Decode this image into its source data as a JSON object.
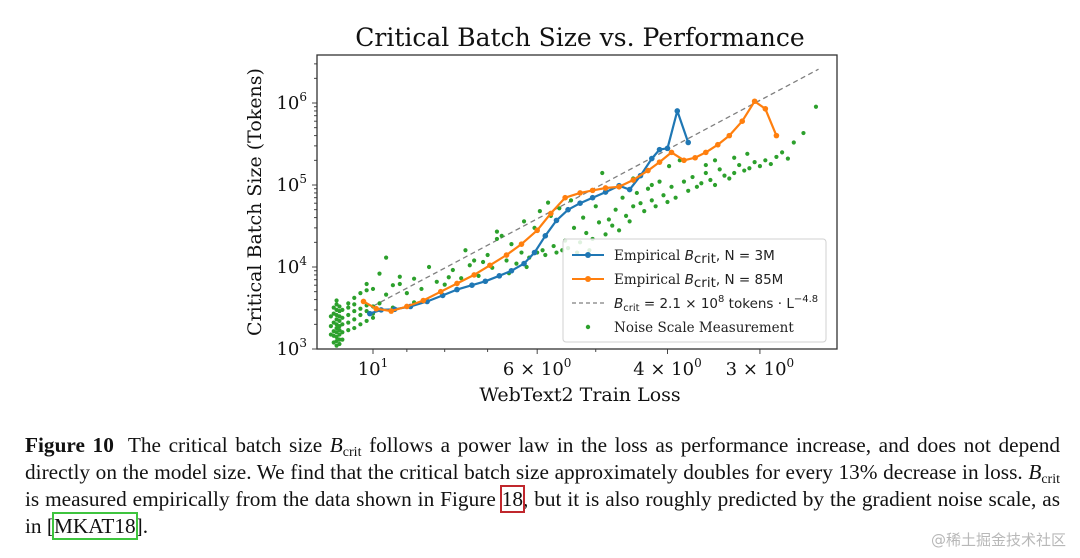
{
  "chart_data": {
    "type": "scatter",
    "title": "Critical Batch Size vs. Performance",
    "xlabel": "WebText2 Train Loss",
    "ylabel": "Critical Batch Size (Tokens)",
    "xscale": "log",
    "x_inverted": true,
    "yscale": "log",
    "ylim": [
      1000,
      3500000
    ],
    "xlim": [
      11.8,
      2.45
    ],
    "x_ticks": [
      {
        "value": 10,
        "base": "10",
        "exp": "1",
        "prefix": ""
      },
      {
        "value": 6,
        "base": "10",
        "exp": "0",
        "prefix": "6 × "
      },
      {
        "value": 4,
        "base": "10",
        "exp": "0",
        "prefix": "4 × "
      },
      {
        "value": 3,
        "base": "10",
        "exp": "0",
        "prefix": "3 × "
      }
    ],
    "y_ticks": [
      {
        "value": 1000,
        "base": "10",
        "exp": "3"
      },
      {
        "value": 10000,
        "base": "10",
        "exp": "4"
      },
      {
        "value": 100000,
        "base": "10",
        "exp": "5"
      },
      {
        "value": 1000000,
        "base": "10",
        "exp": "6"
      }
    ],
    "grid": false,
    "legend_position": "lower-right",
    "series": [
      {
        "name": "Empirical B_crit, N = 3M",
        "legend_label": {
          "pre": "Empirical ",
          "sym": "B",
          "sub": "crit",
          "post": ", N = 3M"
        },
        "kind": "line-marker",
        "color": "#1f77b4",
        "points": [
          [
            10.1,
            2700
          ],
          [
            9.75,
            3000
          ],
          [
            9.35,
            3050
          ],
          [
            8.9,
            3300
          ],
          [
            8.45,
            3800
          ],
          [
            8.05,
            4500
          ],
          [
            7.7,
            5300
          ],
          [
            7.35,
            6000
          ],
          [
            7.05,
            6700
          ],
          [
            6.75,
            7800
          ],
          [
            6.5,
            9000
          ],
          [
            6.25,
            11000
          ],
          [
            6.05,
            15000
          ],
          [
            5.85,
            24000
          ],
          [
            5.65,
            37000
          ],
          [
            5.45,
            50000
          ],
          [
            5.25,
            60000
          ],
          [
            5.05,
            70000
          ],
          [
            4.85,
            82000
          ],
          [
            4.65,
            98000
          ],
          [
            4.5,
            88000
          ],
          [
            4.35,
            130000
          ],
          [
            4.2,
            210000
          ],
          [
            4.1,
            270000
          ],
          [
            4.0,
            280000
          ],
          [
            3.88,
            800000
          ],
          [
            3.75,
            330000
          ]
        ]
      },
      {
        "name": "Empirical B_crit, N = 85M",
        "legend_label": {
          "pre": "Empirical ",
          "sym": "B",
          "sub": "crit",
          "post": ", N = 85M"
        },
        "kind": "line-marker",
        "color": "#ff7f0e",
        "points": [
          [
            10.3,
            3800
          ],
          [
            9.9,
            3100
          ],
          [
            9.45,
            2900
          ],
          [
            9.0,
            3300
          ],
          [
            8.55,
            3900
          ],
          [
            8.1,
            5000
          ],
          [
            7.7,
            6300
          ],
          [
            7.3,
            8000
          ],
          [
            6.95,
            10500
          ],
          [
            6.6,
            14000
          ],
          [
            6.3,
            19000
          ],
          [
            6.0,
            28000
          ],
          [
            5.75,
            45000
          ],
          [
            5.5,
            70000
          ],
          [
            5.25,
            80000
          ],
          [
            5.05,
            86000
          ],
          [
            4.85,
            92000
          ],
          [
            4.65,
            95000
          ],
          [
            4.45,
            115000
          ],
          [
            4.25,
            150000
          ],
          [
            4.1,
            190000
          ],
          [
            3.95,
            250000
          ],
          [
            3.8,
            200000
          ],
          [
            3.67,
            215000
          ],
          [
            3.55,
            250000
          ],
          [
            3.42,
            310000
          ],
          [
            3.3,
            400000
          ],
          [
            3.17,
            600000
          ],
          [
            3.05,
            1050000
          ],
          [
            2.95,
            850000
          ],
          [
            2.85,
            400000
          ]
        ]
      },
      {
        "name": "B_crit = 2.1 × 10^8 tokens · L^-4.8",
        "legend_label": {
          "sym": "B",
          "sub": "crit",
          "post": " = 2.1 × 10",
          "sup": "8",
          "post2": " tokens · L",
          "sup2": "−4.8"
        },
        "kind": "dashed-line",
        "color": "#7f7f7f",
        "coefficient": 210000000,
        "exponent": -4.8,
        "x_range": [
          10.0,
          2.5
        ]
      },
      {
        "name": "Noise Scale Measurement",
        "legend_label": {
          "pre": "Noise Scale Measurement"
        },
        "kind": "scatter",
        "color": "#2ca02c",
        "points": [
          [
            11.2,
            1100
          ],
          [
            11.2,
            1250
          ],
          [
            11.2,
            1400
          ],
          [
            11.2,
            1600
          ],
          [
            11.2,
            1800
          ],
          [
            11.2,
            2000
          ],
          [
            11.2,
            2300
          ],
          [
            11.2,
            2600
          ],
          [
            11.2,
            3000
          ],
          [
            11.2,
            3500
          ],
          [
            11.2,
            3900
          ],
          [
            11.1,
            1150
          ],
          [
            11.1,
            1300
          ],
          [
            11.1,
            1500
          ],
          [
            11.1,
            1700
          ],
          [
            11.1,
            1900
          ],
          [
            11.1,
            2200
          ],
          [
            11.1,
            2500
          ],
          [
            11.1,
            2900
          ],
          [
            11.1,
            3300
          ],
          [
            11.3,
            1200
          ],
          [
            11.3,
            1450
          ],
          [
            11.3,
            1650
          ],
          [
            11.3,
            2100
          ],
          [
            11.3,
            2700
          ],
          [
            11.3,
            3200
          ],
          [
            11.0,
            1300
          ],
          [
            11.0,
            1600
          ],
          [
            11.0,
            2000
          ],
          [
            11.0,
            2400
          ],
          [
            11.0,
            3000
          ],
          [
            11.4,
            1500
          ],
          [
            11.4,
            1900
          ],
          [
            11.4,
            2500
          ],
          [
            10.8,
            1700
          ],
          [
            10.8,
            2100
          ],
          [
            10.8,
            2600
          ],
          [
            10.8,
            3200
          ],
          [
            10.8,
            3600
          ],
          [
            10.6,
            1800
          ],
          [
            10.6,
            2300
          ],
          [
            10.6,
            2900
          ],
          [
            10.6,
            3500
          ],
          [
            10.6,
            4200
          ],
          [
            10.4,
            2000
          ],
          [
            10.4,
            2600
          ],
          [
            10.4,
            3100
          ],
          [
            10.4,
            4800
          ],
          [
            10.2,
            2200
          ],
          [
            10.2,
            2900
          ],
          [
            10.2,
            3400
          ],
          [
            10.2,
            5200
          ],
          [
            10.2,
            6200
          ],
          [
            10.0,
            2400
          ],
          [
            10.0,
            2700
          ],
          [
            10.0,
            3300
          ],
          [
            10.0,
            5400
          ],
          [
            9.8,
            3600
          ],
          [
            9.8,
            8300
          ],
          [
            9.6,
            4600
          ],
          [
            9.6,
            13000
          ],
          [
            9.4,
            3200
          ],
          [
            9.4,
            6000
          ],
          [
            9.2,
            6200
          ],
          [
            9.2,
            7600
          ],
          [
            9.0,
            4800
          ],
          [
            8.8,
            7200
          ],
          [
            8.8,
            3700
          ],
          [
            8.6,
            5400
          ],
          [
            8.4,
            10000
          ],
          [
            8.2,
            6600
          ],
          [
            8.0,
            6100
          ],
          [
            7.9,
            7500
          ],
          [
            7.8,
            9200
          ],
          [
            7.6,
            7300
          ],
          [
            7.5,
            16000
          ],
          [
            7.4,
            10500
          ],
          [
            7.3,
            12000
          ],
          [
            7.2,
            7800
          ],
          [
            7.1,
            11500
          ],
          [
            7.0,
            14000
          ],
          [
            6.9,
            9800
          ],
          [
            6.8,
            27000
          ],
          [
            6.8,
            22000
          ],
          [
            6.7,
            24000
          ],
          [
            6.6,
            12000
          ],
          [
            6.55,
            8400
          ],
          [
            6.5,
            19000
          ],
          [
            6.4,
            11000
          ],
          [
            6.3,
            15000
          ],
          [
            6.25,
            36000
          ],
          [
            6.2,
            10000
          ],
          [
            6.15,
            13000
          ],
          [
            6.05,
            30000
          ],
          [
            6.0,
            15000
          ],
          [
            5.95,
            48000
          ],
          [
            5.9,
            16000
          ],
          [
            5.85,
            14000
          ],
          [
            5.8,
            61000
          ],
          [
            5.75,
            42000
          ],
          [
            5.7,
            18000
          ],
          [
            5.65,
            15000
          ],
          [
            5.6,
            52000
          ],
          [
            5.55,
            16000
          ],
          [
            5.5,
            21000
          ],
          [
            5.45,
            17000
          ],
          [
            5.4,
            65000
          ],
          [
            5.35,
            30000
          ],
          [
            5.3,
            15000
          ],
          [
            5.25,
            20000
          ],
          [
            5.2,
            40000
          ],
          [
            5.15,
            26000
          ],
          [
            5.1,
            16000
          ],
          [
            5.05,
            22000
          ],
          [
            5.0,
            55000
          ],
          [
            4.95,
            35000
          ],
          [
            4.9,
            140000
          ],
          [
            4.85,
            25000
          ],
          [
            4.8,
            38000
          ],
          [
            4.75,
            32000
          ],
          [
            4.7,
            50000
          ],
          [
            4.65,
            28000
          ],
          [
            4.6,
            70000
          ],
          [
            4.55,
            42000
          ],
          [
            4.5,
            36000
          ],
          [
            4.45,
            55000
          ],
          [
            4.4,
            80000
          ],
          [
            4.35,
            60000
          ],
          [
            4.3,
            48000
          ],
          [
            4.25,
            90000
          ],
          [
            4.2,
            65000
          ],
          [
            4.15,
            55000
          ],
          [
            4.1,
            110000
          ],
          [
            4.05,
            75000
          ],
          [
            4.0,
            62000
          ],
          [
            3.98,
            170000
          ],
          [
            3.95,
            95000
          ],
          [
            3.9,
            70000
          ],
          [
            3.85,
            200000
          ],
          [
            3.8,
            110000
          ],
          [
            3.75,
            85000
          ],
          [
            3.7,
            125000
          ],
          [
            3.65,
            95000
          ],
          [
            3.6,
            105000
          ],
          [
            3.55,
            140000
          ],
          [
            3.5,
            115000
          ],
          [
            3.45,
            100000
          ],
          [
            3.4,
            155000
          ],
          [
            3.35,
            130000
          ],
          [
            3.3,
            120000
          ],
          [
            3.25,
            140000
          ],
          [
            3.2,
            175000
          ],
          [
            3.15,
            150000
          ],
          [
            3.1,
            160000
          ],
          [
            3.05,
            190000
          ],
          [
            3.0,
            170000
          ],
          [
            2.95,
            200000
          ],
          [
            2.9,
            180000
          ],
          [
            2.85,
            220000
          ],
          [
            2.8,
            250000
          ],
          [
            2.75,
            210000
          ],
          [
            2.7,
            330000
          ],
          [
            2.62,
            430000
          ],
          [
            2.52,
            900000
          ],
          [
            3.55,
            175000
          ],
          [
            3.45,
            200000
          ],
          [
            3.25,
            215000
          ],
          [
            3.12,
            240000
          ],
          [
            4.45,
            120000
          ],
          [
            4.2,
            100000
          ]
        ]
      }
    ]
  },
  "caption": {
    "figure_label": "Figure 10",
    "text_1": "The critical batch size ",
    "sym_1": "B",
    "sub_1": "crit",
    "text_2": " follows a power law in the loss as performance increase, and does not depend directly on the model size. We find that the critical batch size approximately doubles for every 13% decrease in loss. ",
    "sym_2": "B",
    "sub_2": "crit",
    "text_3": " is measured empirically from the data shown in Figure ",
    "ref_figure": "18",
    "text_4": ", but it is also roughly predicted by the gradient noise scale, as in [",
    "ref_citation": "MKAT18",
    "text_5": "]."
  },
  "watermark": "@稀土掘金技术社区"
}
